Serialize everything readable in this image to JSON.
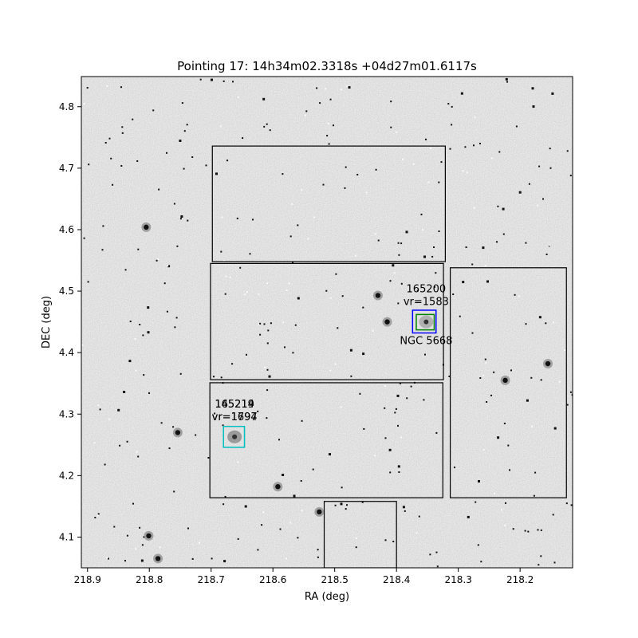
{
  "chart_data": {
    "type": "scatter",
    "title": "Pointing 17: 14h34m02.3318s +04d27m01.6117s",
    "xlabel": "RA (deg)",
    "ylabel": "DEC (deg)",
    "xlim": [
      218.91,
      218.115
    ],
    "ylim": [
      4.05,
      4.849
    ],
    "grid": false,
    "x_ticks": [
      {
        "value": 218.9,
        "label": "218.9"
      },
      {
        "value": 218.8,
        "label": "218.8"
      },
      {
        "value": 218.7,
        "label": "218.7"
      },
      {
        "value": 218.6,
        "label": "218.6"
      },
      {
        "value": 218.5,
        "label": "218.5"
      },
      {
        "value": 218.4,
        "label": "218.4"
      },
      {
        "value": 218.3,
        "label": "218.3"
      },
      {
        "value": 218.2,
        "label": "218.2"
      }
    ],
    "y_ticks": [
      {
        "value": 4.1,
        "label": "4.1"
      },
      {
        "value": 4.2,
        "label": "4.2"
      },
      {
        "value": 4.3,
        "label": "4.3"
      },
      {
        "value": 4.4,
        "label": "4.4"
      },
      {
        "value": 4.5,
        "label": "4.5"
      },
      {
        "value": 4.6,
        "label": "4.6"
      },
      {
        "value": 4.7,
        "label": "4.7"
      },
      {
        "value": 4.8,
        "label": "4.8"
      }
    ],
    "fields": [
      {
        "ra_min": 218.321,
        "ra_max": 218.698,
        "dec_min": 4.548,
        "dec_max": 4.736
      },
      {
        "ra_min": 218.324,
        "ra_max": 218.701,
        "dec_min": 4.356,
        "dec_max": 4.545
      },
      {
        "ra_min": 218.125,
        "ra_max": 218.313,
        "dec_min": 4.164,
        "dec_max": 4.538
      },
      {
        "ra_min": 218.325,
        "ra_max": 218.702,
        "dec_min": 4.164,
        "dec_max": 4.351
      },
      {
        "ra_min": 218.4,
        "ra_max": 218.517,
        "dec_min": 4.05,
        "dec_max": 4.158
      }
    ],
    "galaxies": [
      {
        "name": "165200",
        "vr_label": "vr=1583",
        "extra_label": "NGC 5668",
        "ra": 218.352,
        "dec": 4.45,
        "boxes": [
          {
            "color": "#0000ff",
            "ra_min": 218.336,
            "ra_max": 218.374,
            "dec_min": 4.432,
            "dec_max": 4.469
          },
          {
            "color": "#008000",
            "ra_min": 218.339,
            "ra_max": 218.368,
            "dec_min": 4.437,
            "dec_max": 4.462
          }
        ]
      },
      {
        "name": "165219",
        "vr_label": "vr=1797",
        "ra": 218.662,
        "dec": 4.263,
        "boxes": [
          {
            "color": "#00bfbf",
            "ra_min": 218.646,
            "ra_max": 218.68,
            "dec_min": 4.246,
            "dec_max": 4.28
          }
        ]
      },
      {
        "name": "145214",
        "vr_label": "vr=1694",
        "ra": 218.662,
        "dec": 4.263,
        "boxes": []
      }
    ],
    "bright_stars": [
      {
        "ra": 218.801,
        "dec": 4.102
      },
      {
        "ra": 218.754,
        "dec": 4.27
      },
      {
        "ra": 218.592,
        "dec": 4.182
      },
      {
        "ra": 218.43,
        "dec": 4.493
      },
      {
        "ra": 218.155,
        "dec": 4.382
      },
      {
        "ra": 218.224,
        "dec": 4.355
      },
      {
        "ra": 218.805,
        "dec": 4.604
      },
      {
        "ra": 218.786,
        "dec": 4.065
      },
      {
        "ra": 218.525,
        "dec": 4.141
      },
      {
        "ra": 218.415,
        "dec": 4.45
      }
    ]
  }
}
